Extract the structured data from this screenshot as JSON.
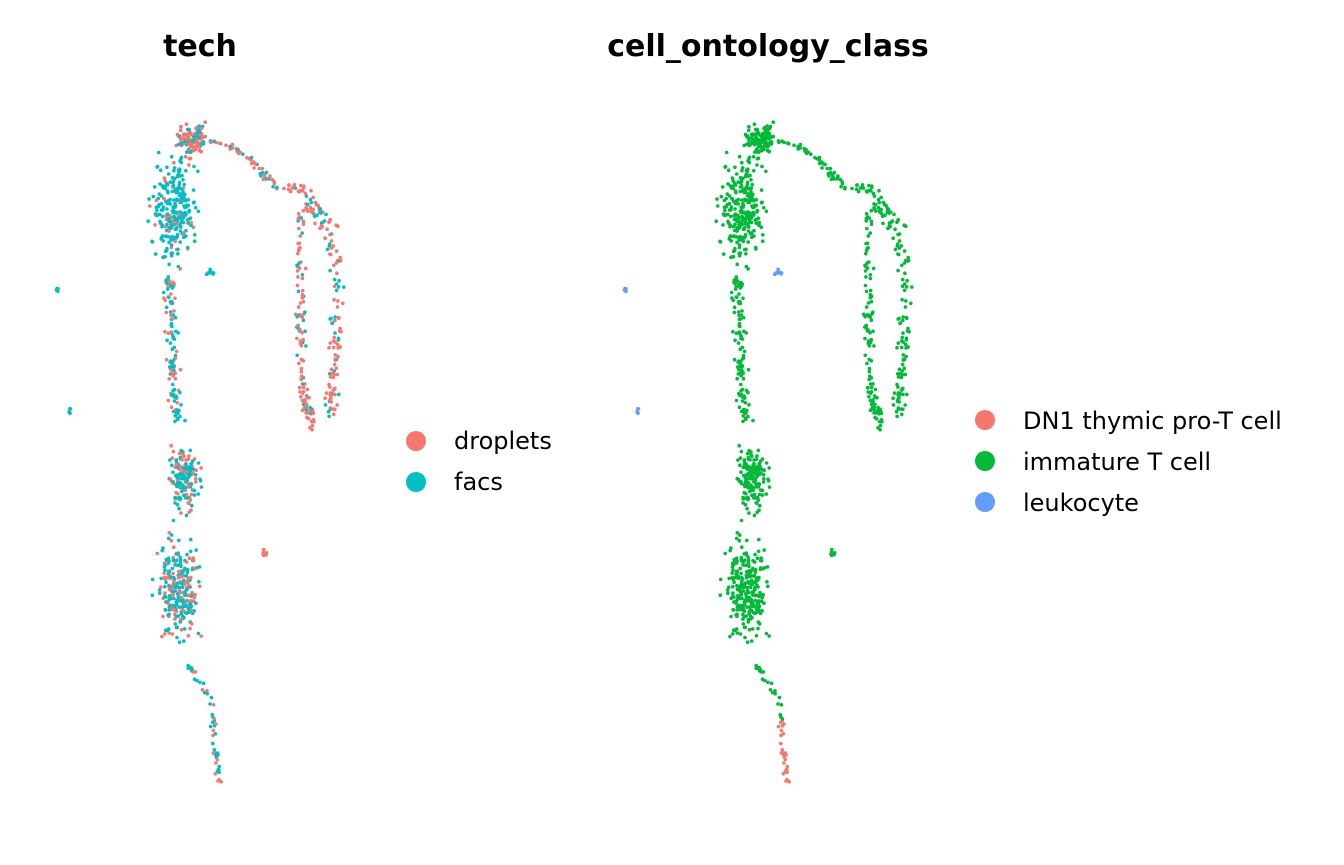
{
  "chart_data": [
    {
      "type": "scatter",
      "title": "tech",
      "xlabel": "",
      "ylabel": "",
      "grid": false,
      "legend_position": "right",
      "legend": [
        {
          "label": "droplets",
          "color": "#F8766D"
        },
        {
          "label": "facs",
          "color": "#00BFC4"
        }
      ],
      "xlim": [
        0,
        10
      ],
      "ylim": [
        0,
        10
      ],
      "mix": {
        "droplets": 0.4,
        "facs": 0.6
      }
    },
    {
      "type": "scatter",
      "title": "cell_ontology_class",
      "xlabel": "",
      "ylabel": "",
      "grid": false,
      "legend_position": "right",
      "legend": [
        {
          "label": "DN1 thymic pro-T cell",
          "color": "#F8766D"
        },
        {
          "label": "immature T cell",
          "color": "#00BA38"
        },
        {
          "label": "leukocyte",
          "color": "#619CFF"
        }
      ],
      "xlim": [
        0,
        10
      ],
      "ylim": [
        0,
        10
      ]
    }
  ]
}
